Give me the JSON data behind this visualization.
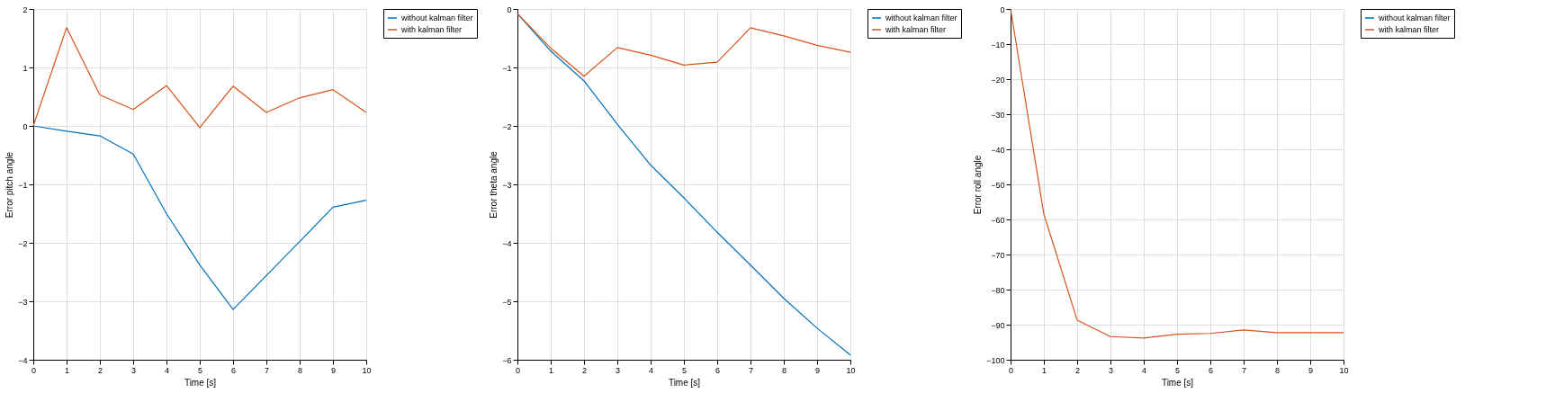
{
  "chart_data": [
    {
      "type": "line",
      "xlabel": "Time [s]",
      "ylabel": "Error pitch angle",
      "x": [
        0,
        1,
        2,
        3,
        4,
        5,
        6,
        7,
        8,
        9,
        10
      ],
      "xlim": [
        0,
        10
      ],
      "xticks": [
        0,
        1,
        2,
        3,
        4,
        5,
        6,
        7,
        8,
        9,
        10
      ],
      "ylim": [
        -4,
        2
      ],
      "yticks": [
        -4,
        -3,
        -2,
        -1,
        0,
        1,
        2
      ],
      "grid": true,
      "legend": "top right",
      "line_style": "solid",
      "series": [
        {
          "name": "without kalman filter",
          "color": "#0072bd",
          "values": [
            0,
            -0.09,
            -0.17,
            -0.48,
            -1.5,
            -2.38,
            -3.14,
            -2.56,
            -1.98,
            -1.39,
            -1.27
          ]
        },
        {
          "name": "with kalman filter",
          "color": "#d95319",
          "values": [
            0,
            1.68,
            0.53,
            0.28,
            0.69,
            -0.03,
            0.68,
            0.23,
            0.48,
            0.62,
            0.23
          ]
        }
      ]
    },
    {
      "type": "line",
      "xlabel": "Time [s]",
      "ylabel": "Error theta angle",
      "x": [
        0,
        1,
        2,
        3,
        4,
        5,
        6,
        7,
        8,
        9,
        10
      ],
      "xlim": [
        0,
        10
      ],
      "xticks": [
        0,
        1,
        2,
        3,
        4,
        5,
        6,
        7,
        8,
        9,
        10
      ],
      "ylim": [
        -6,
        0
      ],
      "yticks": [
        -6,
        -5,
        -4,
        -3,
        -2,
        -1,
        0
      ],
      "grid": true,
      "legend": "top right",
      "line_style": "solid",
      "series": [
        {
          "name": "without kalman filter",
          "color": "#0072bd",
          "values": [
            -0.08,
            -0.72,
            -1.23,
            -1.97,
            -2.67,
            -3.23,
            -3.82,
            -4.38,
            -4.95,
            -5.46,
            -5.92
          ]
        },
        {
          "name": "with kalman filter",
          "color": "#d95319",
          "values": [
            -0.08,
            -0.67,
            -1.15,
            -0.66,
            -0.79,
            -0.96,
            -0.91,
            -0.32,
            -0.46,
            -0.62,
            -0.74
          ]
        }
      ]
    },
    {
      "type": "line",
      "xlabel": "Time [s]",
      "ylabel": "Error roll angle",
      "x": [
        0,
        1,
        2,
        3,
        4,
        5,
        6,
        7,
        8,
        9,
        10
      ],
      "xlim": [
        0,
        10
      ],
      "xticks": [
        0,
        1,
        2,
        3,
        4,
        5,
        6,
        7,
        8,
        9,
        10
      ],
      "ylim": [
        -100,
        0
      ],
      "yticks": [
        -100,
        -90,
        -80,
        -70,
        -60,
        -50,
        -40,
        -30,
        -20,
        -10,
        0
      ],
      "grid": true,
      "legend": "top right",
      "line_style": "solid",
      "series": [
        {
          "name": "without kalman filter",
          "color": "#0072bd",
          "values": [
            null,
            null,
            null,
            null,
            null,
            null,
            null,
            null,
            null,
            null,
            null
          ]
        },
        {
          "name": "with kalman filter",
          "color": "#d95319",
          "values": [
            0,
            -58.5,
            -88.7,
            -93.4,
            -93.8,
            -92.7,
            -92.5,
            -91.5,
            -92.3,
            -92.3,
            -92.3
          ]
        }
      ]
    }
  ]
}
